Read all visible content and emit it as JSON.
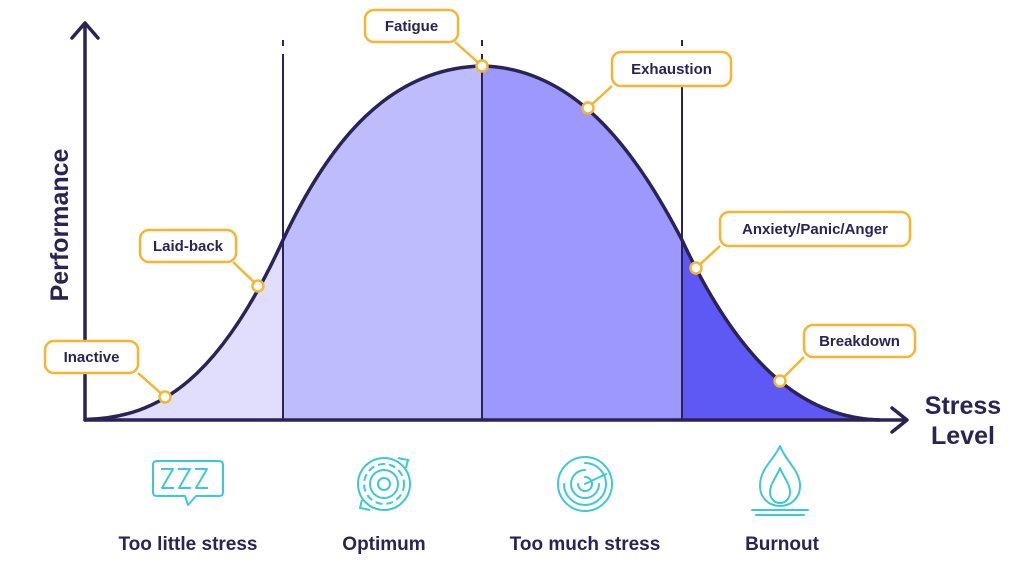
{
  "axes": {
    "y_label": "Performance",
    "x_label_line1": "Stress",
    "x_label_line2": "Level"
  },
  "curve_points": {
    "inactive": "Inactive",
    "laid_back": "Laid-back",
    "fatigue": "Fatigue",
    "exhaustion": "Exhaustion",
    "anxiety": "Anxiety/Panic/Anger",
    "breakdown": "Breakdown"
  },
  "zones": [
    {
      "label": "Too little stress",
      "icon": "zzz-speech-bubble-icon",
      "color": "#e0defc"
    },
    {
      "label": "Optimum",
      "icon": "gear-icon",
      "color": "#bebcfb"
    },
    {
      "label": "Too much stress",
      "icon": "spiral-gauge-icon",
      "color": "#9c98fc"
    },
    {
      "label": "Burnout",
      "icon": "flame-icon",
      "color": "#5e58f4"
    }
  ],
  "colors": {
    "axis": "#2b2358",
    "curve": "#2b2358",
    "callout_border": "#f4b630",
    "icon": "#3ec7d9"
  }
}
